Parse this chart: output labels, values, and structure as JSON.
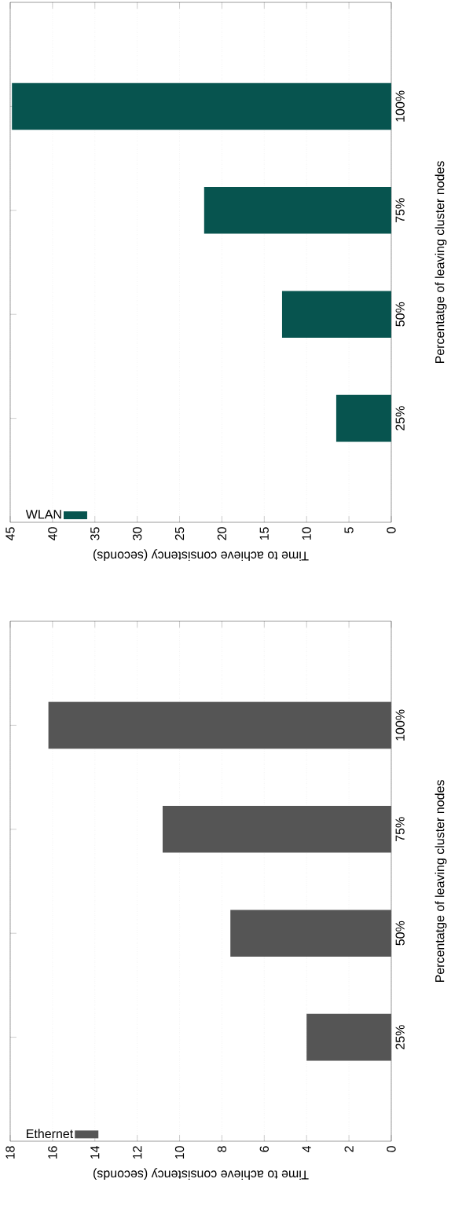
{
  "chart_data": [
    {
      "type": "bar",
      "orientation": "horizontal",
      "categories": [
        "100%",
        "75%",
        "50%",
        "25%"
      ],
      "ylabel": "Percentatge of leaving cluster nodes",
      "xlabel": "Time to achieve consistency (seconds)",
      "xlim": [
        18,
        0
      ],
      "xticks": [
        0,
        2,
        4,
        6,
        8,
        10,
        12,
        14,
        16,
        18
      ],
      "grid": "x",
      "legend": "bottom left",
      "series": [
        {
          "name": "Ethernet",
          "color": "#555555",
          "values": [
            16.2,
            10.8,
            7.6,
            4.0
          ]
        }
      ]
    },
    {
      "type": "bar",
      "orientation": "horizontal",
      "categories": [
        "100%",
        "75%",
        "50%",
        "25%"
      ],
      "ylabel": "Percentatge of leaving cluster nodes",
      "xlabel": "Time to achieve consistency (seconds)",
      "xlim": [
        45,
        0
      ],
      "xticks": [
        0,
        5,
        10,
        15,
        20,
        25,
        30,
        35,
        40,
        45
      ],
      "grid": "x",
      "legend": "bottom left",
      "series": [
        {
          "name": "WLAN",
          "color": "#07544f",
          "values": [
            44.8,
            22.1,
            12.9,
            6.5
          ]
        }
      ]
    }
  ]
}
